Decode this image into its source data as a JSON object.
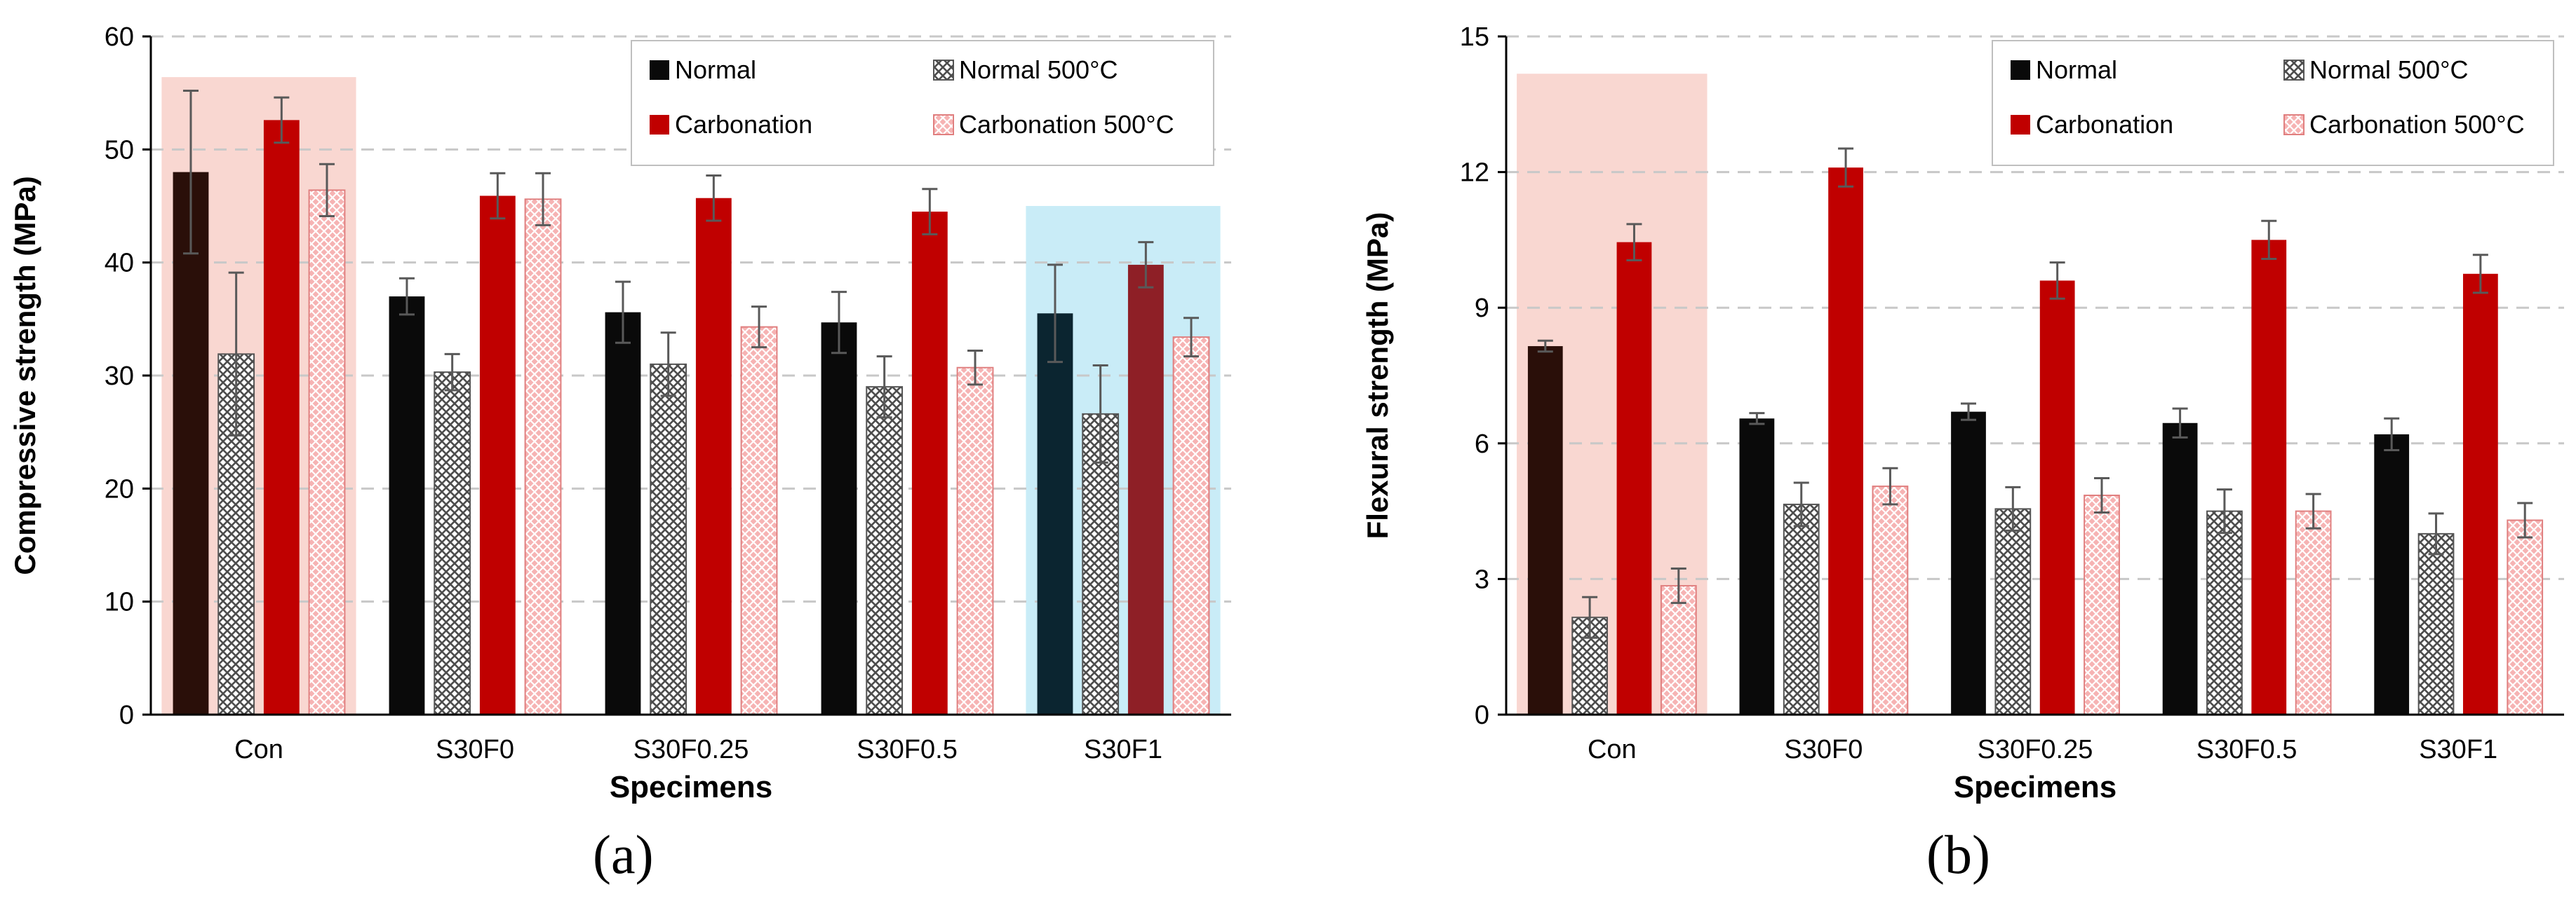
{
  "panels": {
    "a": "(a)",
    "b": "(b)"
  },
  "colors": {
    "normal": "#0a0a0a",
    "normal500_stroke": "#555555",
    "carbonation": "#c00000",
    "carbonation500": "#f4a6a6",
    "highlight_red": "#f9d7d1",
    "highlight_blue": "#c9ecf7",
    "error_bar": "#595959",
    "grid": "#c8c8c8"
  },
  "chart_data": [
    {
      "type": "bar",
      "title": "",
      "xlabel": "Specimens",
      "ylabel": "Compressive strength (MPa)",
      "ylim": [
        0,
        60
      ],
      "yticks": [
        "0",
        "10",
        "20",
        "30",
        "40",
        "50",
        "60"
      ],
      "grid": "horizontal dashed",
      "legend_position": "top-right",
      "categories": [
        "Con",
        "S30F0",
        "S30F0.25",
        "S30F0.5",
        "S30F1"
      ],
      "highlighted": [
        {
          "category_index": 0,
          "color": "red"
        },
        {
          "category_index": 4,
          "color": "blue"
        }
      ],
      "series": [
        {
          "name": "Normal",
          "values": [
            48.0,
            37.0,
            35.6,
            34.7,
            35.5
          ],
          "errors": [
            7.2,
            1.6,
            2.7,
            2.7,
            4.3
          ]
        },
        {
          "name": "Normal 500°C",
          "values": [
            31.9,
            30.3,
            31.0,
            29.0,
            26.6
          ],
          "errors": [
            7.2,
            1.6,
            2.8,
            2.7,
            4.3
          ]
        },
        {
          "name": "Carbonation",
          "values": [
            52.6,
            45.9,
            45.7,
            44.5,
            39.8
          ],
          "errors": [
            2.0,
            2.0,
            2.0,
            2.0,
            2.0
          ]
        },
        {
          "name": "Carbonation 500°C",
          "values": [
            46.4,
            45.6,
            34.3,
            30.7,
            33.4
          ],
          "errors": [
            2.3,
            2.3,
            1.8,
            1.5,
            1.7
          ]
        }
      ]
    },
    {
      "type": "bar",
      "title": "",
      "xlabel": "Specimens",
      "ylabel": "Flexural strength (MPa)",
      "ylim": [
        0,
        15
      ],
      "yticks": [
        "0",
        "3",
        "6",
        "9",
        "12",
        "15"
      ],
      "grid": "horizontal dashed",
      "legend_position": "top-right",
      "categories": [
        "Con",
        "S30F0",
        "S30F0.25",
        "S30F0.5",
        "S30F1"
      ],
      "highlighted": [
        {
          "category_index": 0,
          "color": "red"
        }
      ],
      "series": [
        {
          "name": "Normal",
          "values": [
            8.15,
            6.55,
            6.7,
            6.45,
            6.2
          ],
          "errors": [
            0.12,
            0.12,
            0.18,
            0.32,
            0.35
          ]
        },
        {
          "name": "Normal 500°C",
          "values": [
            2.15,
            4.65,
            4.55,
            4.5,
            4.0
          ],
          "errors": [
            0.45,
            0.48,
            0.48,
            0.48,
            0.45
          ]
        },
        {
          "name": "Carbonation",
          "values": [
            10.45,
            12.1,
            9.6,
            10.5,
            9.75
          ],
          "errors": [
            0.4,
            0.42,
            0.4,
            0.42,
            0.42
          ]
        },
        {
          "name": "Carbonation 500°C",
          "values": [
            2.85,
            5.05,
            4.85,
            4.5,
            4.3
          ],
          "errors": [
            0.38,
            0.4,
            0.38,
            0.38,
            0.38
          ]
        }
      ]
    }
  ]
}
